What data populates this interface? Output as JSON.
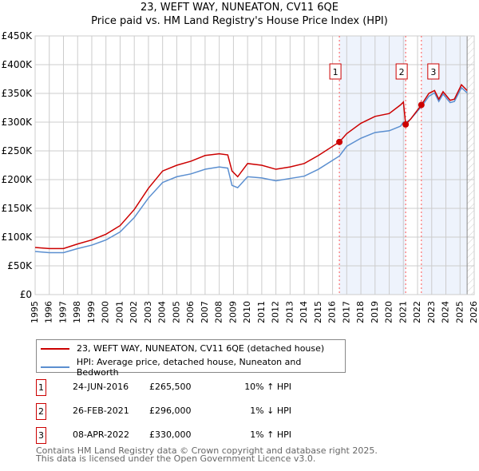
{
  "title_line1": "23, WEFT WAY, NUNEATON, CV11 6QE",
  "title_line2": "Price paid vs. HM Land Registry's House Price Index (HPI)",
  "colors": {
    "property": "#cc0000",
    "hpi": "#5b8fd0",
    "shade": "#eef3fc",
    "marker": "#ff5555"
  },
  "chart_data": {
    "type": "line",
    "title": "Price paid vs. HM Land Registry's House Price Index (HPI)",
    "xlim": [
      1995,
      2026
    ],
    "ylim": [
      0,
      450000
    ],
    "xticks": [
      "1995",
      "1996",
      "1997",
      "1998",
      "1999",
      "2000",
      "2001",
      "2002",
      "2003",
      "2004",
      "2005",
      "2006",
      "2007",
      "2008",
      "2009",
      "2010",
      "2011",
      "2012",
      "2013",
      "2014",
      "2015",
      "2016",
      "2017",
      "2018",
      "2019",
      "2020",
      "2021",
      "2022",
      "2023",
      "2024",
      "2025",
      "2026"
    ],
    "yticks": [
      {
        "v": 0,
        "label": "£0"
      },
      {
        "v": 50000,
        "label": "£50K"
      },
      {
        "v": 100000,
        "label": "£100K"
      },
      {
        "v": 150000,
        "label": "£150K"
      },
      {
        "v": 200000,
        "label": "£200K"
      },
      {
        "v": 250000,
        "label": "£250K"
      },
      {
        "v": 300000,
        "label": "£300K"
      },
      {
        "v": 350000,
        "label": "£350K"
      },
      {
        "v": 400000,
        "label": "£400K"
      },
      {
        "v": 450000,
        "label": "£450K"
      }
    ],
    "series": [
      {
        "name": "23, WEFT WAY, NUNEATON, CV11 6QE (detached house)",
        "color": "#cc0000",
        "x": [
          1995,
          1996,
          1997,
          1998,
          1999,
          2000,
          2001,
          2002,
          2003,
          2004,
          2005,
          2006,
          2007,
          2008,
          2008.6,
          2008.9,
          2009.3,
          2010,
          2011,
          2012,
          2013,
          2014,
          2015,
          2016.48,
          2017,
          2018,
          2019,
          2020,
          2020.8,
          2021.0,
          2021.16,
          2021.5,
          2022.27,
          2022.8,
          2023.2,
          2023.5,
          2023.8,
          2024.3,
          2024.6,
          2025.1,
          2025.5
        ],
        "y": [
          82000,
          80000,
          80000,
          88000,
          95000,
          105000,
          120000,
          148000,
          185000,
          215000,
          225000,
          232000,
          242000,
          245000,
          243000,
          215000,
          205000,
          228000,
          225000,
          218000,
          222000,
          228000,
          242000,
          265500,
          280000,
          298000,
          310000,
          315000,
          330000,
          335000,
          296000,
          305000,
          330000,
          350000,
          355000,
          340000,
          353000,
          338000,
          340000,
          365000,
          355000
        ]
      },
      {
        "name": "HPI: Average price, detached house, Nuneaton and Bedworth",
        "color": "#5b8fd0",
        "x": [
          1995,
          1996,
          1997,
          1998,
          1999,
          2000,
          2001,
          2002,
          2003,
          2004,
          2005,
          2006,
          2007,
          2008,
          2008.6,
          2008.9,
          2009.3,
          2010,
          2011,
          2012,
          2013,
          2014,
          2015,
          2016.48,
          2017,
          2018,
          2019,
          2020,
          2020.8,
          2021.0,
          2021.16,
          2021.5,
          2022.27,
          2022.8,
          2023.2,
          2023.5,
          2023.8,
          2024.3,
          2024.6,
          2025.1,
          2025.5
        ],
        "y": [
          75000,
          73000,
          73000,
          80000,
          86000,
          95000,
          109000,
          134000,
          168000,
          195000,
          205000,
          210000,
          218000,
          222000,
          220000,
          190000,
          186000,
          205000,
          203000,
          198000,
          202000,
          206000,
          218000,
          241000,
          258000,
          272000,
          282000,
          285000,
          293000,
          300000,
          299000,
          305000,
          327000,
          345000,
          351000,
          336000,
          349000,
          334000,
          336000,
          360000,
          351000
        ]
      }
    ],
    "sales": [
      {
        "id": "1",
        "x": 2016.48,
        "y": 265500
      },
      {
        "id": "2",
        "x": 2021.16,
        "y": 296000
      },
      {
        "id": "3",
        "x": 2022.27,
        "y": 330000
      }
    ],
    "data_end": 2025.5
  },
  "legend": {
    "property": "23, WEFT WAY, NUNEATON, CV11 6QE (detached house)",
    "hpi": "HPI: Average price, detached house, Nuneaton and Bedworth"
  },
  "transactions": [
    {
      "id": "1",
      "date": "24-JUN-2016",
      "price": "£265,500",
      "hpi": "10% ↑ HPI"
    },
    {
      "id": "2",
      "date": "26-FEB-2021",
      "price": "£296,000",
      "hpi": "1% ↓ HPI"
    },
    {
      "id": "3",
      "date": "08-APR-2022",
      "price": "£330,000",
      "hpi": "1% ↑ HPI"
    }
  ],
  "footer1": "Contains HM Land Registry data © Crown copyright and database right 2025.",
  "footer2": "This data is licensed under the Open Government Licence v3.0."
}
